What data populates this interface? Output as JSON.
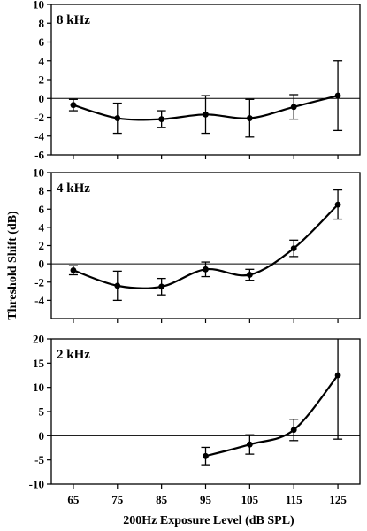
{
  "chart_data": [
    {
      "type": "line",
      "panel_label": "8 kHz",
      "x": [
        65,
        75,
        85,
        95,
        105,
        115,
        125
      ],
      "y": [
        -0.7,
        -2.1,
        -2.2,
        -1.7,
        -2.1,
        -0.9,
        0.3
      ],
      "err": [
        0.6,
        1.6,
        0.9,
        2.0,
        2.0,
        1.3,
        3.7
      ],
      "ylim": [
        -6,
        10
      ],
      "yticks": [
        -6,
        -4,
        -2,
        0,
        2,
        4,
        6,
        8,
        10
      ],
      "reference_line": 0
    },
    {
      "type": "line",
      "panel_label": "4 kHz",
      "x": [
        65,
        75,
        85,
        95,
        105,
        115,
        125
      ],
      "y": [
        -0.7,
        -2.4,
        -2.5,
        -0.6,
        -1.2,
        1.7,
        6.5
      ],
      "err": [
        0.5,
        1.6,
        0.9,
        0.8,
        0.6,
        0.9,
        1.6
      ],
      "ylim": [
        -6,
        10
      ],
      "yticks": [
        -4,
        -2,
        0,
        2,
        4,
        6,
        8,
        10
      ],
      "reference_line": 0
    },
    {
      "type": "line",
      "panel_label": "2 kHz",
      "x": [
        95,
        105,
        115,
        125
      ],
      "y": [
        -4.2,
        -1.8,
        1.2,
        12.5
      ],
      "err": [
        1.8,
        2.0,
        2.2,
        13.2
      ],
      "ylim": [
        -10,
        20
      ],
      "yticks": [
        -10,
        -5,
        0,
        5,
        10,
        15,
        20
      ],
      "reference_line": 0
    }
  ],
  "xticks": [
    65,
    75,
    85,
    95,
    105,
    115,
    125
  ],
  "xlim": [
    60,
    130
  ],
  "xlabel": "200Hz Exposure Level (dB SPL)",
  "ylabel": "Threshold Shift (dB)"
}
